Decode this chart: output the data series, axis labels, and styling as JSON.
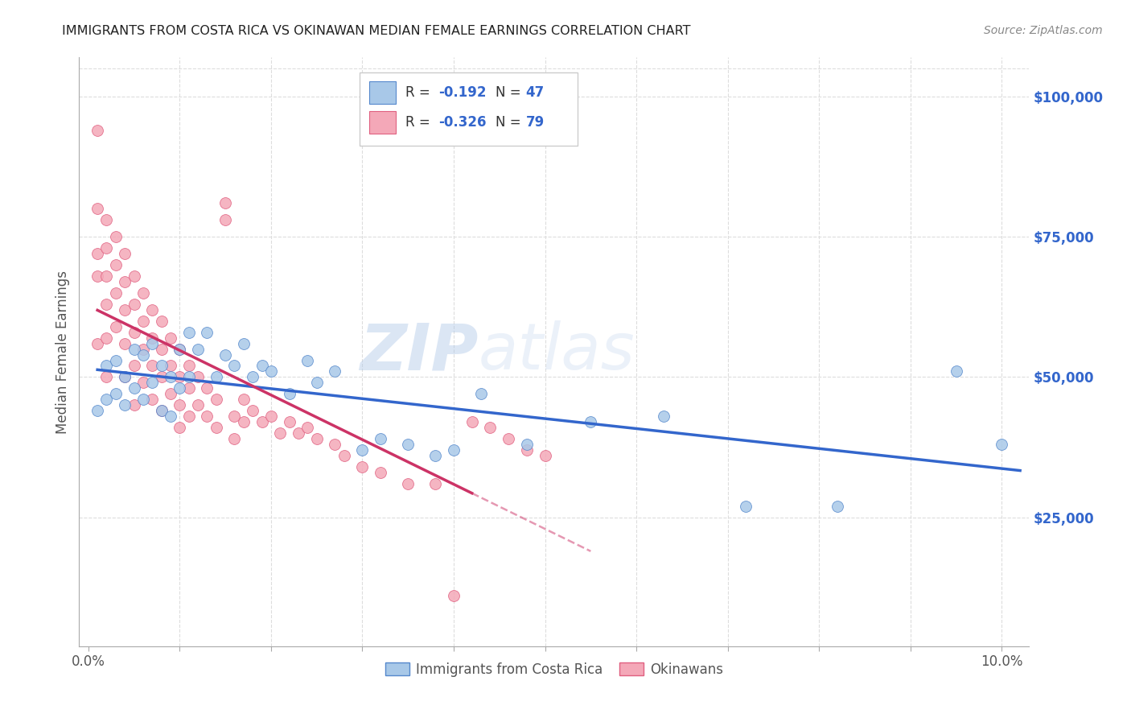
{
  "title": "IMMIGRANTS FROM COSTA RICA VS OKINAWAN MEDIAN FEMALE EARNINGS CORRELATION CHART",
  "source": "Source: ZipAtlas.com",
  "xlabel_ticks": [
    "0.0%",
    "",
    "",
    "",
    "",
    "",
    "",
    "",
    "",
    "10.0%"
  ],
  "xlabel_vals": [
    0.0,
    0.01,
    0.02,
    0.03,
    0.04,
    0.05,
    0.06,
    0.07,
    0.08,
    0.1
  ],
  "ylabel": "Median Female Earnings",
  "ylabel_right_ticks": [
    "$25,000",
    "$50,000",
    "$75,000",
    "$100,000"
  ],
  "ylabel_right_vals": [
    25000,
    50000,
    75000,
    100000
  ],
  "xlim": [
    -0.001,
    0.103
  ],
  "ylim": [
    2000,
    107000
  ],
  "blue_R": "-0.192",
  "blue_N": "47",
  "pink_R": "-0.326",
  "pink_N": "79",
  "blue_color": "#a8c8e8",
  "pink_color": "#f4a8b8",
  "blue_edge_color": "#5588cc",
  "pink_edge_color": "#e06080",
  "blue_line_color": "#3366cc",
  "pink_line_color": "#cc3366",
  "watermark_zip": "ZIP",
  "watermark_atlas": "atlas",
  "bg_color": "#ffffff",
  "grid_color": "#dddddd",
  "title_color": "#222222",
  "source_color": "#888888",
  "ylabel_color": "#555555",
  "xtick_color": "#555555",
  "blue_scatter_x": [
    0.001,
    0.002,
    0.002,
    0.003,
    0.003,
    0.004,
    0.004,
    0.005,
    0.005,
    0.006,
    0.006,
    0.007,
    0.007,
    0.008,
    0.008,
    0.009,
    0.009,
    0.01,
    0.01,
    0.011,
    0.011,
    0.012,
    0.013,
    0.014,
    0.015,
    0.016,
    0.017,
    0.018,
    0.019,
    0.02,
    0.022,
    0.024,
    0.025,
    0.027,
    0.03,
    0.032,
    0.035,
    0.038,
    0.04,
    0.043,
    0.048,
    0.055,
    0.063,
    0.072,
    0.082,
    0.095,
    0.1
  ],
  "blue_scatter_y": [
    44000,
    52000,
    46000,
    53000,
    47000,
    50000,
    45000,
    55000,
    48000,
    54000,
    46000,
    56000,
    49000,
    52000,
    44000,
    50000,
    43000,
    55000,
    48000,
    58000,
    50000,
    55000,
    58000,
    50000,
    54000,
    52000,
    56000,
    50000,
    52000,
    51000,
    47000,
    53000,
    49000,
    51000,
    37000,
    39000,
    38000,
    36000,
    37000,
    47000,
    38000,
    42000,
    43000,
    27000,
    27000,
    51000,
    38000
  ],
  "pink_scatter_x": [
    0.001,
    0.001,
    0.001,
    0.001,
    0.001,
    0.002,
    0.002,
    0.002,
    0.002,
    0.002,
    0.002,
    0.003,
    0.003,
    0.003,
    0.003,
    0.004,
    0.004,
    0.004,
    0.004,
    0.004,
    0.005,
    0.005,
    0.005,
    0.005,
    0.005,
    0.006,
    0.006,
    0.006,
    0.006,
    0.007,
    0.007,
    0.007,
    0.007,
    0.008,
    0.008,
    0.008,
    0.008,
    0.009,
    0.009,
    0.009,
    0.01,
    0.01,
    0.01,
    0.01,
    0.011,
    0.011,
    0.011,
    0.012,
    0.012,
    0.013,
    0.013,
    0.014,
    0.014,
    0.015,
    0.015,
    0.016,
    0.016,
    0.017,
    0.017,
    0.018,
    0.019,
    0.02,
    0.021,
    0.022,
    0.023,
    0.024,
    0.025,
    0.027,
    0.028,
    0.03,
    0.032,
    0.035,
    0.038,
    0.04,
    0.042,
    0.044,
    0.046,
    0.048,
    0.05
  ],
  "pink_scatter_y": [
    94000,
    80000,
    72000,
    68000,
    56000,
    78000,
    73000,
    68000,
    63000,
    57000,
    50000,
    75000,
    70000,
    65000,
    59000,
    72000,
    67000,
    62000,
    56000,
    50000,
    68000,
    63000,
    58000,
    52000,
    45000,
    65000,
    60000,
    55000,
    49000,
    62000,
    57000,
    52000,
    46000,
    60000,
    55000,
    50000,
    44000,
    57000,
    52000,
    47000,
    55000,
    50000,
    45000,
    41000,
    52000,
    48000,
    43000,
    50000,
    45000,
    48000,
    43000,
    46000,
    41000,
    81000,
    78000,
    43000,
    39000,
    46000,
    42000,
    44000,
    42000,
    43000,
    40000,
    42000,
    40000,
    41000,
    39000,
    38000,
    36000,
    34000,
    33000,
    31000,
    31000,
    11000,
    42000,
    41000,
    39000,
    37000,
    36000
  ],
  "blue_line_x_start": 0.001,
  "blue_line_x_end": 0.102,
  "pink_line_x_start": 0.001,
  "pink_line_solid_end": 0.042,
  "pink_line_dash_end": 0.055
}
